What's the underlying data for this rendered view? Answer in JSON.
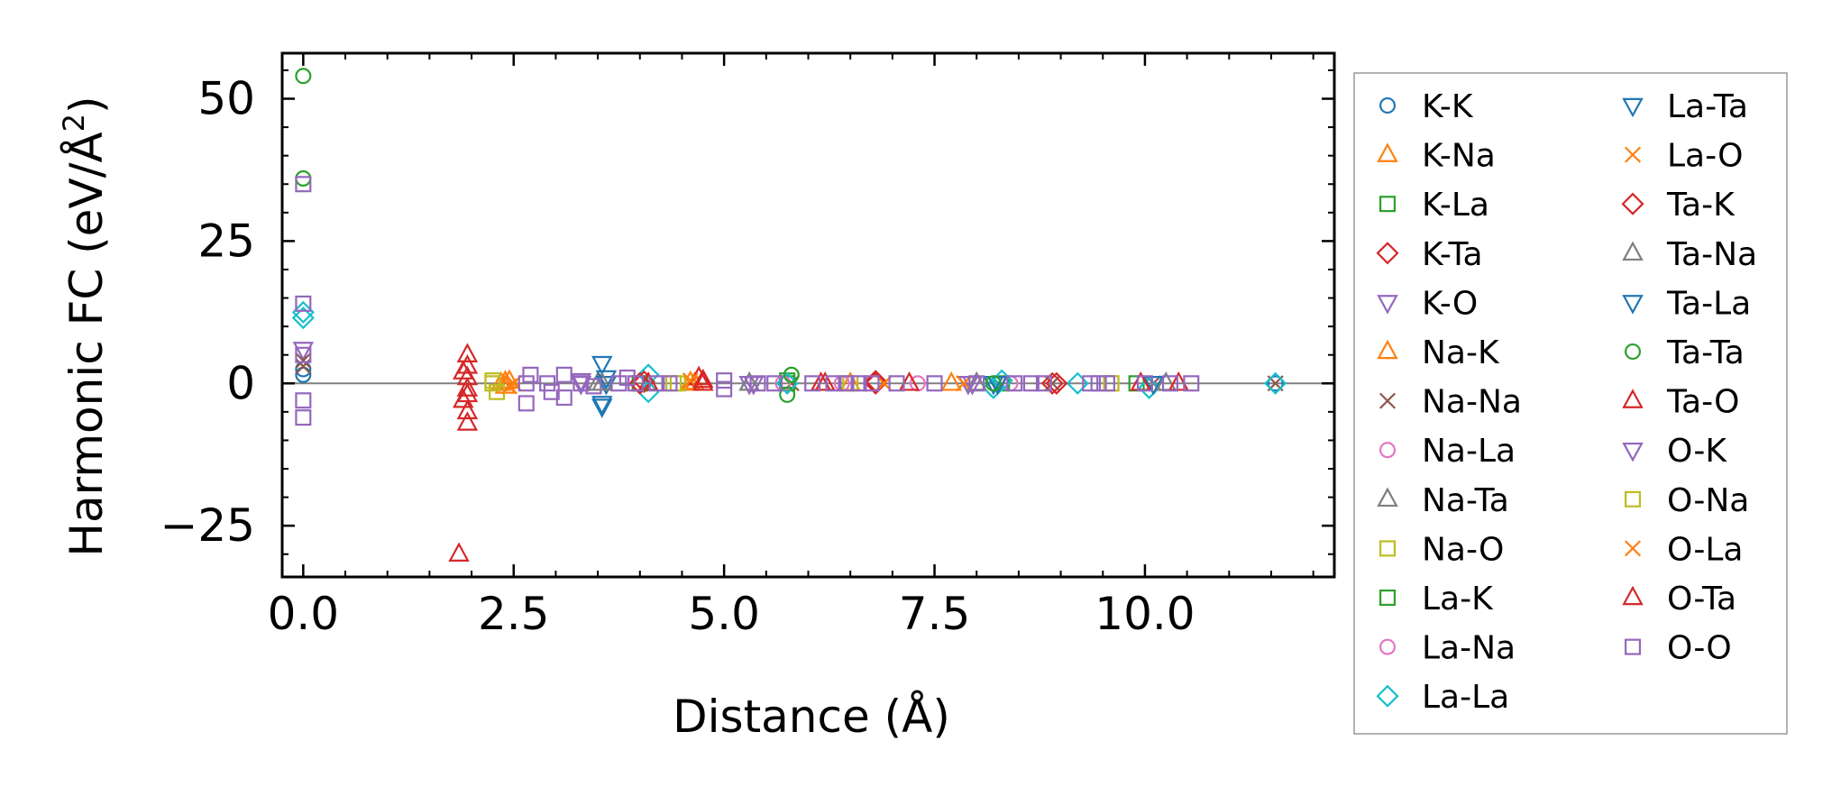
{
  "chart_data": {
    "type": "scatter",
    "title": "",
    "xlabel": "Distance (Å)",
    "ylabel_main": "Harmonic FC (eV/Å",
    "ylabel_sup": "2",
    "ylabel_close": ")",
    "xlim": [
      -0.25,
      12.25
    ],
    "ylim": [
      -34,
      58
    ],
    "xticks": [
      {
        "value": 0.0,
        "label": "0.0"
      },
      {
        "value": 2.5,
        "label": "2.5"
      },
      {
        "value": 5.0,
        "label": "5.0"
      },
      {
        "value": 7.5,
        "label": "7.5"
      },
      {
        "value": 10.0,
        "label": "10.0"
      }
    ],
    "yticks": [
      {
        "value": -25,
        "label": "−25"
      },
      {
        "value": 0,
        "label": "0"
      },
      {
        "value": 25,
        "label": "25"
      },
      {
        "value": 50,
        "label": "50"
      }
    ],
    "x_minor_step": 0.5,
    "y_minor_step": 5,
    "zero_line": 0,
    "legend_position": "outside-right",
    "series": [
      {
        "name": "K-K",
        "marker": "circle",
        "color": "#1f77b4",
        "points": [
          [
            0,
            1.5
          ],
          [
            0,
            2.5
          ],
          [
            11.55,
            0
          ]
        ]
      },
      {
        "name": "K-Na",
        "marker": "triangle-up",
        "color": "#ff7f0e",
        "points": [
          [
            2.35,
            0
          ],
          [
            2.4,
            -0.5
          ],
          [
            2.45,
            0.4
          ],
          [
            4.6,
            0.2
          ],
          [
            6.5,
            0
          ]
        ]
      },
      {
        "name": "K-La",
        "marker": "square",
        "color": "#2ca02c",
        "points": [
          [
            4.0,
            0
          ],
          [
            5.75,
            0
          ],
          [
            8.3,
            0
          ]
        ]
      },
      {
        "name": "K-Ta",
        "marker": "diamond",
        "color": "#d62728",
        "points": [
          [
            4.05,
            0.3
          ],
          [
            6.8,
            0
          ],
          [
            8.9,
            0
          ]
        ]
      },
      {
        "name": "K-O",
        "marker": "triangle-down",
        "color": "#9467bd",
        "points": [
          [
            0,
            6
          ],
          [
            3.3,
            0
          ],
          [
            5.3,
            0
          ],
          [
            7.9,
            0
          ]
        ]
      },
      {
        "name": "Na-K",
        "marker": "triangle-up",
        "color": "#ff7f0e",
        "points": [
          [
            2.4,
            0.3
          ],
          [
            4.65,
            0
          ],
          [
            7.7,
            0
          ]
        ]
      },
      {
        "name": "Na-Na",
        "marker": "x",
        "color": "#8c564b",
        "points": [
          [
            0,
            3
          ],
          [
            0,
            4
          ],
          [
            5.8,
            0
          ],
          [
            8.9,
            0
          ],
          [
            10.1,
            0
          ],
          [
            11.55,
            0
          ]
        ]
      },
      {
        "name": "Na-La",
        "marker": "circle",
        "color": "#e377c2",
        "points": [
          [
            4.0,
            0
          ],
          [
            6.4,
            0
          ],
          [
            8.4,
            0
          ]
        ]
      },
      {
        "name": "Na-Ta",
        "marker": "triangle-up",
        "color": "#7f7f7f",
        "points": [
          [
            3.5,
            0
          ],
          [
            5.3,
            0
          ],
          [
            8.0,
            0
          ]
        ]
      },
      {
        "name": "Na-O",
        "marker": "square",
        "color": "#bcbd22",
        "points": [
          [
            2.25,
            0
          ],
          [
            2.3,
            -1.5
          ],
          [
            4.4,
            0
          ],
          [
            9.6,
            0
          ]
        ]
      },
      {
        "name": "La-K",
        "marker": "square",
        "color": "#2ca02c",
        "points": [
          [
            4.0,
            0
          ],
          [
            5.75,
            0.5
          ],
          [
            9.9,
            0
          ]
        ]
      },
      {
        "name": "La-Na",
        "marker": "circle",
        "color": "#e377c2",
        "points": [
          [
            5.7,
            0
          ],
          [
            7.3,
            0
          ]
        ]
      },
      {
        "name": "La-La",
        "marker": "diamond",
        "color": "#17becf",
        "points": [
          [
            0,
            11.5
          ],
          [
            0,
            12.5
          ],
          [
            4.1,
            1.5
          ],
          [
            4.1,
            -1.5
          ],
          [
            5.75,
            0
          ],
          [
            8.2,
            -0.8
          ],
          [
            8.3,
            0.5
          ],
          [
            9.2,
            0
          ],
          [
            10.05,
            -0.8
          ],
          [
            11.55,
            0
          ]
        ]
      },
      {
        "name": "La-Ta",
        "marker": "triangle-down",
        "color": "#1f77b4",
        "points": [
          [
            3.55,
            3.5
          ],
          [
            3.55,
            -3.5
          ],
          [
            3.6,
            0
          ],
          [
            8.25,
            0
          ],
          [
            10.1,
            0
          ]
        ]
      },
      {
        "name": "La-O",
        "marker": "x",
        "color": "#ff7f0e",
        "points": [
          [
            2.5,
            0
          ],
          [
            4.6,
            0
          ],
          [
            6.9,
            0
          ],
          [
            7.85,
            0
          ]
        ]
      },
      {
        "name": "Ta-K",
        "marker": "diamond",
        "color": "#d62728",
        "points": [
          [
            4.0,
            0
          ],
          [
            6.8,
            0.4
          ],
          [
            8.95,
            0
          ]
        ]
      },
      {
        "name": "Ta-Na",
        "marker": "triangle-up",
        "color": "#7f7f7f",
        "points": [
          [
            3.55,
            0
          ],
          [
            5.3,
            0
          ],
          [
            8.0,
            0
          ],
          [
            10.25,
            0
          ]
        ]
      },
      {
        "name": "Ta-La",
        "marker": "triangle-down",
        "color": "#1f77b4",
        "points": [
          [
            3.55,
            -4
          ],
          [
            3.6,
            1
          ],
          [
            8.2,
            0
          ]
        ]
      },
      {
        "name": "Ta-Ta",
        "marker": "circle",
        "color": "#2ca02c",
        "points": [
          [
            0,
            54
          ],
          [
            0,
            36
          ],
          [
            5.75,
            -2
          ],
          [
            5.8,
            1.5
          ],
          [
            8.2,
            0
          ]
        ]
      },
      {
        "name": "Ta-O",
        "marker": "triangle-up",
        "color": "#d62728",
        "points": [
          [
            1.85,
            -30
          ],
          [
            1.95,
            5
          ],
          [
            1.95,
            3
          ],
          [
            1.95,
            1
          ],
          [
            1.95,
            -1
          ],
          [
            1.9,
            -3
          ],
          [
            1.95,
            -5
          ],
          [
            1.95,
            -7
          ],
          [
            4.1,
            0
          ],
          [
            4.7,
            1
          ],
          [
            4.75,
            0
          ],
          [
            6.2,
            0
          ],
          [
            7.2,
            0
          ],
          [
            9.95,
            0
          ],
          [
            10.4,
            0
          ]
        ]
      },
      {
        "name": "O-K",
        "marker": "triangle-down",
        "color": "#9467bd",
        "points": [
          [
            3.3,
            0.5
          ],
          [
            5.35,
            0
          ],
          [
            7.95,
            0
          ]
        ]
      },
      {
        "name": "O-Na",
        "marker": "square",
        "color": "#bcbd22",
        "points": [
          [
            2.25,
            0.5
          ],
          [
            4.45,
            0
          ],
          [
            6.5,
            0
          ],
          [
            9.6,
            0
          ]
        ]
      },
      {
        "name": "O-La",
        "marker": "x",
        "color": "#ff7f0e",
        "points": [
          [
            2.45,
            -0.5
          ],
          [
            4.6,
            0.5
          ],
          [
            6.9,
            0
          ],
          [
            7.85,
            0
          ]
        ]
      },
      {
        "name": "O-Ta",
        "marker": "triangle-up",
        "color": "#d62728",
        "points": [
          [
            1.9,
            2
          ],
          [
            1.95,
            -2
          ],
          [
            4.75,
            0.5
          ],
          [
            6.15,
            0
          ]
        ]
      },
      {
        "name": "O-O",
        "marker": "square",
        "color": "#9467bd",
        "points": [
          [
            0,
            35
          ],
          [
            0,
            14
          ],
          [
            0,
            5
          ],
          [
            0,
            -3
          ],
          [
            0,
            -6
          ],
          [
            2.65,
            0
          ],
          [
            2.7,
            1.5
          ],
          [
            2.65,
            -3.5
          ],
          [
            2.9,
            0
          ],
          [
            2.95,
            -1.5
          ],
          [
            3.1,
            1.5
          ],
          [
            3.1,
            -2.5
          ],
          [
            3.3,
            0
          ],
          [
            3.45,
            -0.5
          ],
          [
            3.75,
            0
          ],
          [
            3.85,
            1
          ],
          [
            3.95,
            0
          ],
          [
            4.2,
            0
          ],
          [
            4.35,
            0
          ],
          [
            5.0,
            0.5
          ],
          [
            5.0,
            -1
          ],
          [
            5.4,
            0
          ],
          [
            5.6,
            0
          ],
          [
            6.05,
            0
          ],
          [
            6.3,
            0
          ],
          [
            6.45,
            0
          ],
          [
            6.6,
            0
          ],
          [
            6.75,
            0
          ],
          [
            7.05,
            0
          ],
          [
            7.5,
            0
          ],
          [
            8.0,
            0
          ],
          [
            8.45,
            0
          ],
          [
            8.65,
            0
          ],
          [
            8.8,
            0
          ],
          [
            9.35,
            0
          ],
          [
            9.45,
            0
          ],
          [
            9.55,
            0
          ],
          [
            10.0,
            0
          ],
          [
            10.3,
            0
          ],
          [
            10.55,
            0
          ]
        ]
      }
    ]
  }
}
